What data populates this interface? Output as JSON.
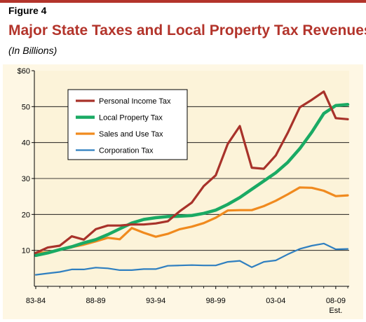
{
  "header": {
    "figure_label": "Figure 4",
    "title": "Major State Taxes and Local Property Tax Revenues",
    "subtitle": "(In Billions)"
  },
  "colors": {
    "title": "#b3342b",
    "topbar": "#b3342b",
    "plot_background": "#fcf3d9",
    "outer_background": "#ffffff",
    "legend_background": "#ffffff"
  },
  "chart_data": {
    "type": "line",
    "x": [
      "83-84",
      "84-85",
      "85-86",
      "86-87",
      "87-88",
      "88-89",
      "89-90",
      "90-91",
      "91-92",
      "92-93",
      "93-94",
      "94-95",
      "95-96",
      "96-97",
      "97-98",
      "98-99",
      "99-00",
      "00-01",
      "01-02",
      "02-03",
      "03-04",
      "04-05",
      "05-06",
      "06-07",
      "07-08",
      "08-09",
      "09-10"
    ],
    "xtick_labels": [
      "83-84",
      "88-89",
      "93-94",
      "98-99",
      "03-04",
      "08-09"
    ],
    "xtick_sublabel": "Est.",
    "ylim": [
      0,
      60
    ],
    "ytick_labels": [
      "10",
      "20",
      "30",
      "40",
      "50",
      "$60"
    ],
    "ytick_values": [
      10,
      20,
      30,
      40,
      50,
      60
    ],
    "grid": "horizontal",
    "legend_position": "top-left",
    "series": [
      {
        "name": "Personal Income Tax",
        "color": "#a8322a",
        "values": [
          9.3,
          10.8,
          11.3,
          13.9,
          13.0,
          15.9,
          16.9,
          16.9,
          17.2,
          17.2,
          17.5,
          18.1,
          20.9,
          23.3,
          27.9,
          30.9,
          39.6,
          44.6,
          33.0,
          32.7,
          36.4,
          42.7,
          49.8,
          51.9,
          54.2,
          46.8,
          46.5
        ]
      },
      {
        "name": "Local Property Tax",
        "color": "#1aaa64",
        "values": [
          8.6,
          9.3,
          10.2,
          11.0,
          12.1,
          13.0,
          14.4,
          16.0,
          17.6,
          18.6,
          19.1,
          19.4,
          19.5,
          19.7,
          20.3,
          21.2,
          22.8,
          24.7,
          27.0,
          29.3,
          31.6,
          34.5,
          38.3,
          42.9,
          48.1,
          50.3,
          50.6
        ]
      },
      {
        "name": "Sales and Use Tax",
        "color": "#f08a1e",
        "values": [
          9.2,
          9.5,
          10.2,
          10.9,
          11.6,
          12.5,
          13.5,
          13.1,
          16.2,
          14.9,
          13.8,
          14.6,
          15.9,
          16.6,
          17.6,
          19.1,
          21.1,
          21.2,
          21.2,
          22.3,
          23.8,
          25.6,
          27.5,
          27.4,
          26.6,
          25.1,
          25.3
        ]
      },
      {
        "name": "Corporation Tax",
        "color": "#2f7fc0",
        "values": [
          3.2,
          3.6,
          4.0,
          4.7,
          4.7,
          5.2,
          5.0,
          4.5,
          4.5,
          4.8,
          4.8,
          5.7,
          5.8,
          5.9,
          5.8,
          5.8,
          6.8,
          7.1,
          5.3,
          6.8,
          7.2,
          8.9,
          10.4,
          11.3,
          11.9,
          10.3,
          10.4
        ]
      }
    ]
  }
}
